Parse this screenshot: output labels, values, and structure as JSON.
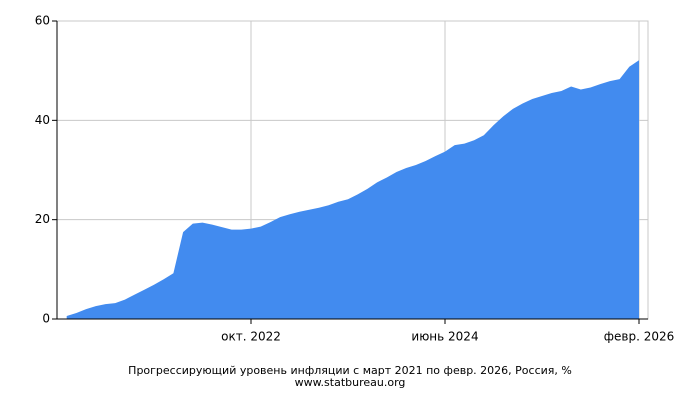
{
  "chart_data": {
    "type": "area",
    "title": "Прогрессирующий уровень инфляции с март 2021 по февр. 2026, Россия, %",
    "subtitle": "www.statbureau.org",
    "categories": [
      null,
      null,
      null,
      null,
      null,
      null,
      null,
      null,
      null,
      null,
      null,
      null,
      null,
      null,
      null,
      null,
      null,
      null,
      null,
      "окт. 2022",
      null,
      null,
      null,
      null,
      null,
      null,
      null,
      null,
      null,
      null,
      null,
      null,
      null,
      null,
      null,
      null,
      null,
      null,
      null,
      "июнь 2024",
      null,
      null,
      null,
      null,
      null,
      null,
      null,
      null,
      null,
      null,
      null,
      null,
      null,
      null,
      null,
      null,
      null,
      null,
      null,
      "февр. 2026"
    ],
    "values": [
      0.6,
      1.2,
      2.0,
      2.6,
      3.0,
      3.2,
      3.9,
      4.9,
      5.9,
      6.9,
      8.0,
      9.2,
      17.5,
      19.2,
      19.4,
      19.0,
      18.5,
      18.0,
      18.0,
      18.2,
      18.6,
      19.5,
      20.5,
      21.1,
      21.6,
      22.0,
      22.4,
      22.9,
      23.6,
      24.1,
      25.1,
      26.2,
      27.5,
      28.5,
      29.6,
      30.4,
      31.0,
      31.8,
      32.8,
      33.7,
      35.0,
      35.3,
      36.0,
      37.0,
      39.0,
      40.8,
      42.3,
      43.4,
      44.3,
      44.9,
      45.5,
      45.9,
      46.8,
      46.2,
      46.6,
      47.3,
      47.9,
      48.3,
      50.8,
      52.1
    ],
    "color": "#428bef",
    "ylim": [
      0,
      60
    ],
    "yticks": [
      0,
      20,
      40,
      60
    ],
    "grid": true
  }
}
